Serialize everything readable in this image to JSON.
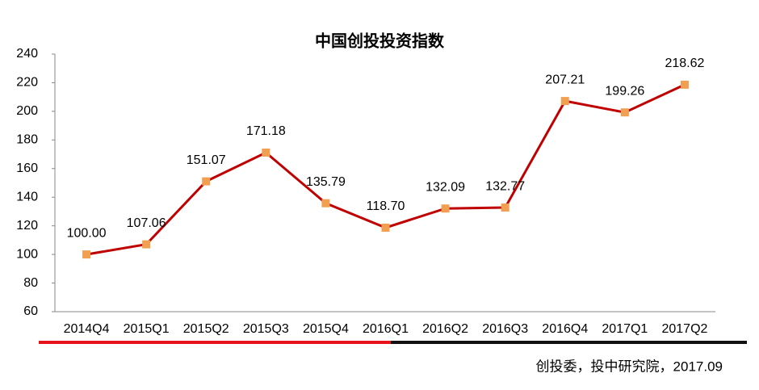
{
  "chart_data": {
    "type": "line",
    "title": "中国创投投资指数",
    "categories": [
      "2014Q4",
      "2015Q1",
      "2015Q2",
      "2015Q3",
      "2015Q4",
      "2016Q1",
      "2016Q2",
      "2016Q3",
      "2016Q4",
      "2017Q1",
      "2017Q2"
    ],
    "series": [
      {
        "color": "#c00000",
        "marker_color": "#f0a050",
        "values": [
          100.0,
          107.06,
          151.07,
          171.18,
          135.79,
          118.7,
          132.09,
          132.77,
          207.21,
          199.26,
          218.62
        ],
        "value_labels": [
          "100.00",
          "107.06",
          "151.07",
          "171.18",
          "135.79",
          "118.70",
          "132.09",
          "132.77",
          "207.21",
          "199.26",
          "218.62"
        ]
      }
    ],
    "ylim": [
      60,
      240
    ],
    "yticks": [
      60,
      80,
      100,
      120,
      140,
      160,
      180,
      200,
      220,
      240
    ],
    "grid": false,
    "source": "创投委，投中研究院，2017.09"
  }
}
